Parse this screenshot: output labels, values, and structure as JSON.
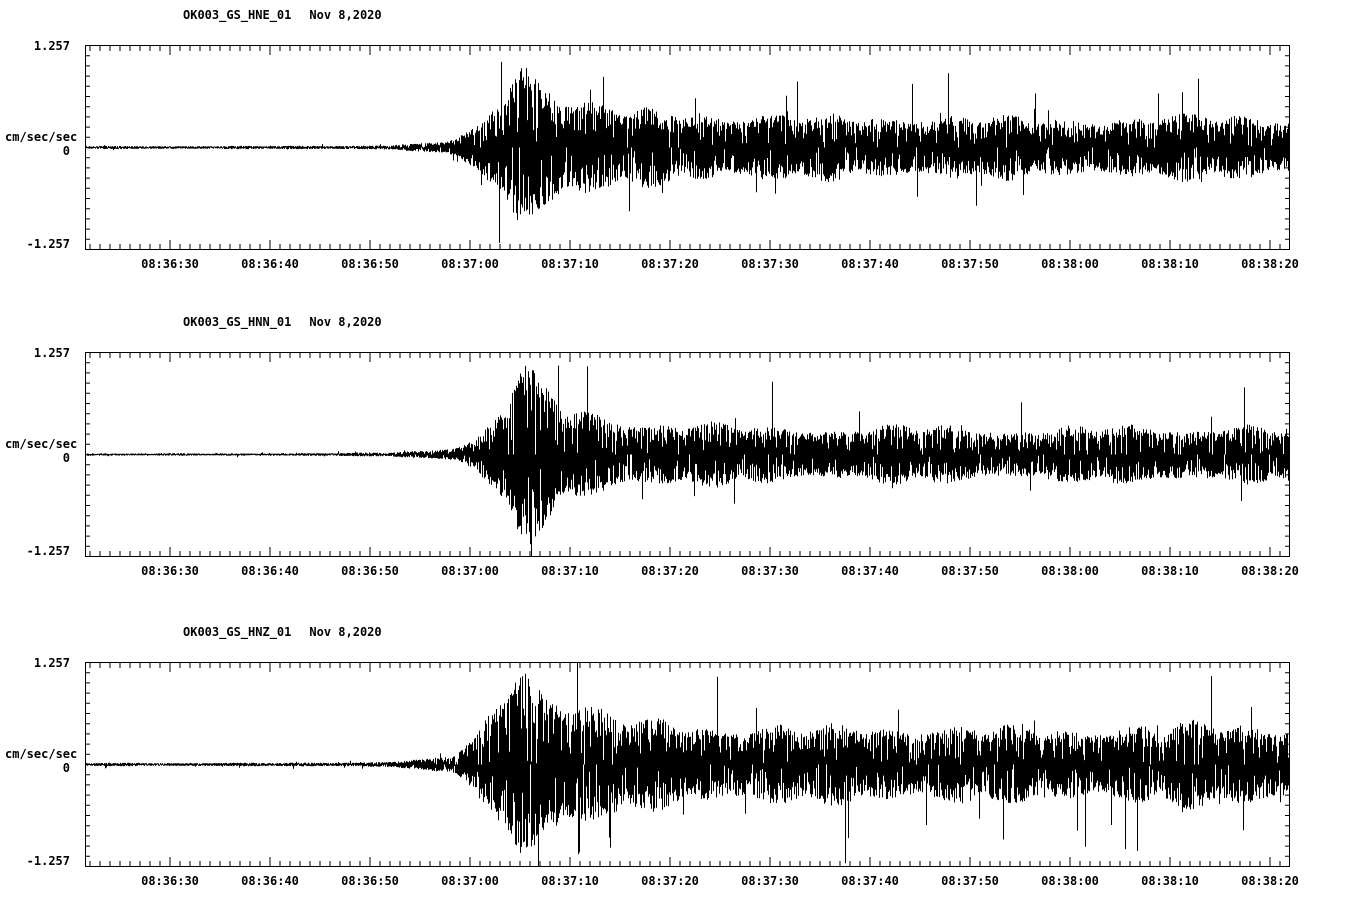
{
  "page": {
    "background": "#ffffff",
    "trace_color": "#000000",
    "axis_color": "#000000"
  },
  "chart_data": [
    {
      "type": "line",
      "station": "OK003_GS_HNE_01",
      "date": "Nov 8,2020",
      "ylabel": "cm/sec/sec",
      "y_max_label": "1.257",
      "y_zero_label": "0",
      "y_min_label": "-1.257",
      "ylim": [
        -1.257,
        1.257
      ],
      "x_start_time": "08:36:21.5",
      "x_end_time": "08:38:22",
      "x_major_tick_interval_sec": 10,
      "x_minor_tick_interval_sec": 1,
      "x_tick_labels": [
        "08:36:30",
        "08:36:40",
        "08:36:50",
        "08:37:00",
        "08:37:10",
        "08:37:20",
        "08:37:30",
        "08:37:40",
        "08:37:50",
        "08:38:00",
        "08:38:10",
        "08:38:20"
      ],
      "seed": 11,
      "envelope": [
        [
          0,
          0.018
        ],
        [
          20,
          0.018
        ],
        [
          26,
          0.022
        ],
        [
          30,
          0.03
        ],
        [
          34,
          0.05
        ],
        [
          37,
          0.1
        ],
        [
          39,
          0.22
        ],
        [
          41,
          0.5
        ],
        [
          43,
          0.95
        ],
        [
          44,
          1.12
        ],
        [
          46,
          0.85
        ],
        [
          48,
          0.6
        ],
        [
          52,
          0.48
        ],
        [
          57,
          0.42
        ],
        [
          65,
          0.4
        ],
        [
          75,
          0.36
        ],
        [
          85,
          0.38
        ],
        [
          95,
          0.34
        ],
        [
          105,
          0.36
        ],
        [
          115,
          0.38
        ],
        [
          120.5,
          0.36
        ]
      ]
    },
    {
      "type": "line",
      "station": "OK003_GS_HNN_01",
      "date": "Nov 8,2020",
      "ylabel": "cm/sec/sec",
      "y_max_label": "1.257",
      "y_zero_label": "0",
      "y_min_label": "-1.257",
      "ylim": [
        -1.257,
        1.257
      ],
      "x_start_time": "08:36:21.5",
      "x_end_time": "08:38:22",
      "x_major_tick_interval_sec": 10,
      "x_minor_tick_interval_sec": 1,
      "x_tick_labels": [
        "08:36:30",
        "08:36:40",
        "08:36:50",
        "08:37:00",
        "08:37:10",
        "08:37:20",
        "08:37:30",
        "08:37:40",
        "08:37:50",
        "08:38:00",
        "08:38:10",
        "08:38:20"
      ],
      "seed": 22,
      "envelope": [
        [
          0,
          0.012
        ],
        [
          20,
          0.014
        ],
        [
          26,
          0.018
        ],
        [
          30,
          0.025
        ],
        [
          34,
          0.045
        ],
        [
          37,
          0.09
        ],
        [
          39,
          0.2
        ],
        [
          41,
          0.45
        ],
        [
          43,
          0.9
        ],
        [
          44,
          1.05
        ],
        [
          46,
          0.75
        ],
        [
          48,
          0.55
        ],
        [
          52,
          0.45
        ],
        [
          57,
          0.38
        ],
        [
          65,
          0.34
        ],
        [
          75,
          0.32
        ],
        [
          85,
          0.33
        ],
        [
          95,
          0.3
        ],
        [
          105,
          0.34
        ],
        [
          115,
          0.33
        ],
        [
          120.5,
          0.32
        ]
      ]
    },
    {
      "type": "line",
      "station": "OK003_GS_HNZ_01",
      "date": "Nov 8,2020",
      "ylabel": "cm/sec/sec",
      "y_max_label": "1.257",
      "y_zero_label": "0",
      "y_min_label": "-1.257",
      "ylim": [
        -1.257,
        1.257
      ],
      "x_start_time": "08:36:21.5",
      "x_end_time": "08:38:22",
      "x_major_tick_interval_sec": 10,
      "x_minor_tick_interval_sec": 1,
      "x_tick_labels": [
        "08:36:30",
        "08:36:40",
        "08:36:50",
        "08:37:00",
        "08:37:10",
        "08:37:20",
        "08:37:30",
        "08:37:40",
        "08:37:50",
        "08:38:00",
        "08:38:10",
        "08:38:20"
      ],
      "seed": 33,
      "envelope": [
        [
          0,
          0.02
        ],
        [
          20,
          0.02
        ],
        [
          26,
          0.024
        ],
        [
          30,
          0.035
        ],
        [
          34,
          0.06
        ],
        [
          37,
          0.12
        ],
        [
          39,
          0.3
        ],
        [
          41,
          0.7
        ],
        [
          43,
          1.15
        ],
        [
          44,
          1.3
        ],
        [
          46,
          1.0
        ],
        [
          48,
          0.8
        ],
        [
          52,
          0.6
        ],
        [
          57,
          0.5
        ],
        [
          65,
          0.46
        ],
        [
          75,
          0.44
        ],
        [
          85,
          0.46
        ],
        [
          95,
          0.42
        ],
        [
          105,
          0.46
        ],
        [
          115,
          0.48
        ],
        [
          120.5,
          0.46
        ]
      ]
    }
  ]
}
